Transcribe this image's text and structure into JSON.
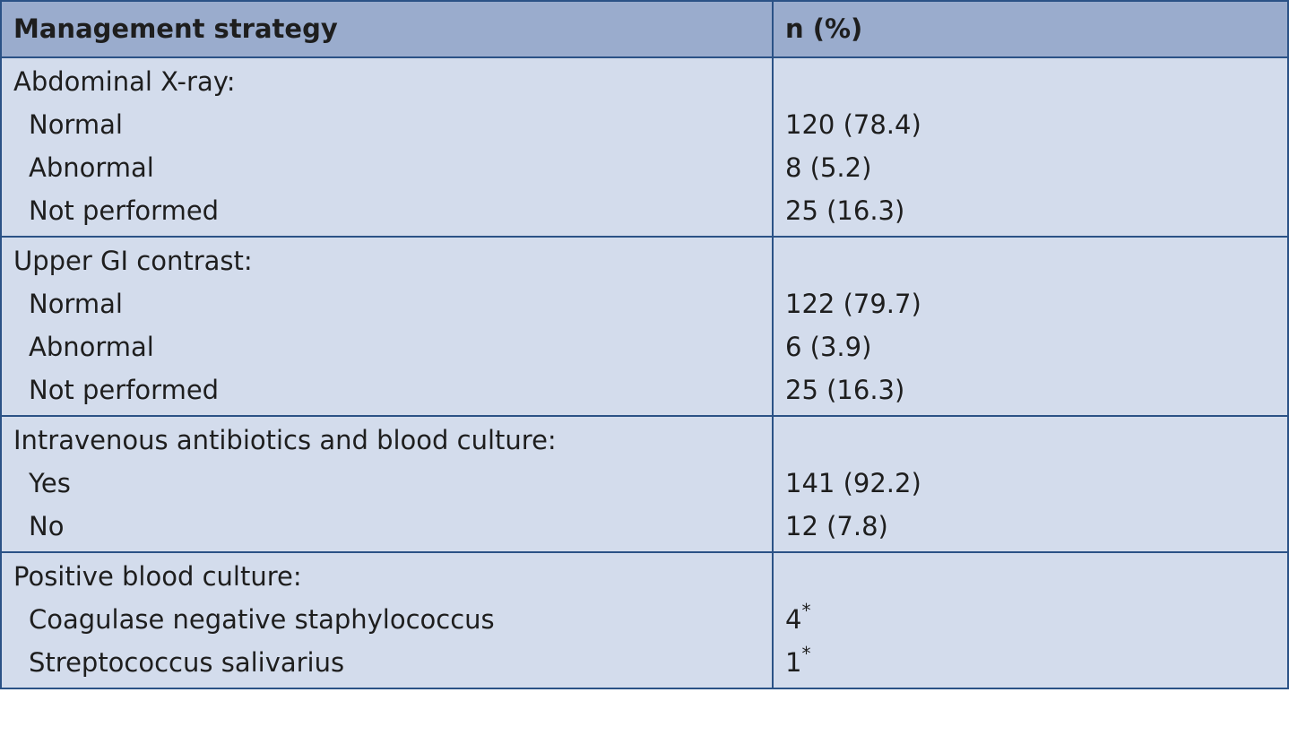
{
  "table": {
    "headers": [
      "Management strategy",
      "n (%)"
    ],
    "groups": [
      {
        "label": "Abdominal X-ray:",
        "rows": [
          {
            "label": "Normal",
            "value": "120 (78.4)"
          },
          {
            "label": "Abnormal",
            "value": "8 (5.2)"
          },
          {
            "label": "Not performed",
            "value": "25 (16.3)"
          }
        ]
      },
      {
        "label": "Upper GI contrast:",
        "rows": [
          {
            "label": "Normal",
            "value": "122 (79.7)"
          },
          {
            "label": "Abnormal",
            "value": "6 (3.9)"
          },
          {
            "label": "Not performed",
            "value": "25 (16.3)"
          }
        ]
      },
      {
        "label": "Intravenous antibiotics and blood culture:",
        "rows": [
          {
            "label": "Yes",
            "value": "141 (92.2)"
          },
          {
            "label": "No",
            "value": "12 (7.8)"
          }
        ]
      },
      {
        "label": "Positive blood culture:",
        "rows": [
          {
            "label": "Coagulase negative staphylococcus",
            "value": "4",
            "mark": "*"
          },
          {
            "label": "Streptococcus salivarius",
            "value": "1",
            "mark": "*"
          }
        ]
      }
    ]
  }
}
